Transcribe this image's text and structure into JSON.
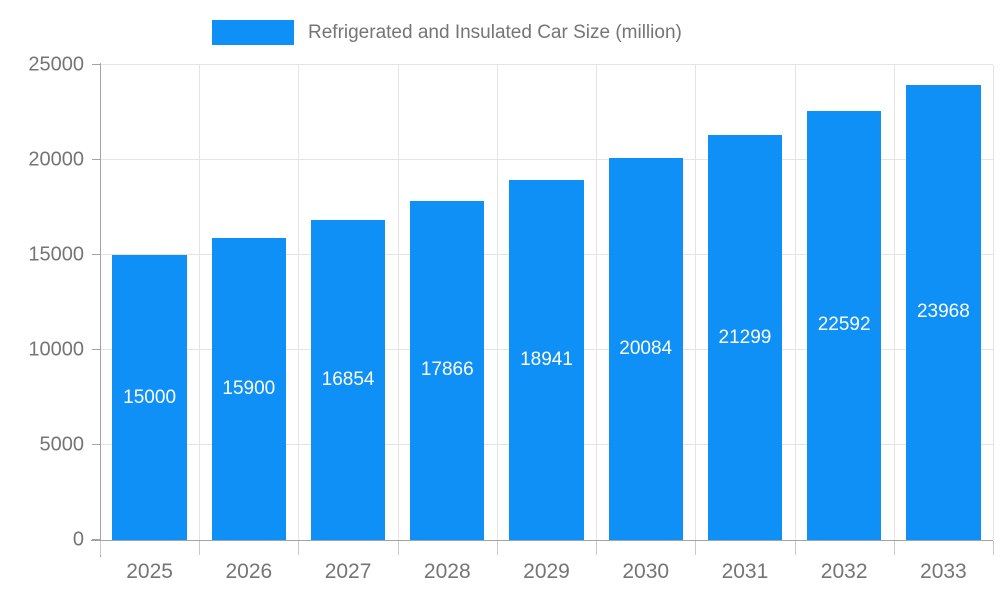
{
  "legend": {
    "label": "Refrigerated and Insulated Car Size (million)"
  },
  "colors": {
    "bar": "#0e90f6",
    "grid": "#e4e4e4",
    "axis": "#a3a3a3",
    "boundary_tick": "#c9c9c9",
    "axis_text": "#757575",
    "value_text": "#ffffff"
  },
  "chart_data": {
    "type": "bar",
    "title": "Refrigerated and Insulated Car Size (million)",
    "categories": [
      "2025",
      "2026",
      "2027",
      "2028",
      "2029",
      "2030",
      "2031",
      "2032",
      "2033"
    ],
    "values": [
      15000,
      15900,
      16854,
      17866,
      18941,
      20084,
      21299,
      22592,
      23968
    ],
    "xlabel": "",
    "ylabel": "",
    "ylim": [
      0,
      25000
    ],
    "yticks": [
      0,
      5000,
      10000,
      15000,
      20000,
      25000
    ],
    "grid": true,
    "legend_position": "top",
    "bar_width_fraction": 0.75,
    "value_labels": "inside-center"
  }
}
